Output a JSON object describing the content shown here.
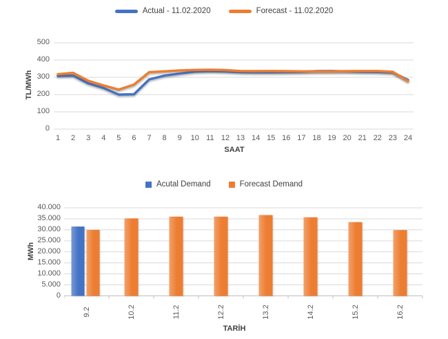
{
  "colors": {
    "actual": "#4472C4",
    "forecast": "#ED7D31",
    "gridline": "#D9D9D9",
    "axis_line": "#BFBFBF",
    "tick_text": "#595959",
    "title_text": "#404040",
    "background": "#FFFFFF"
  },
  "chart_data": [
    {
      "type": "line",
      "title": "",
      "xlabel": "SAAT",
      "ylabel": "TL/MWh",
      "legend_position": "top",
      "grid": true,
      "ylim": [
        0,
        500
      ],
      "ytick_step": 100,
      "ytick_labels": [
        "500",
        "400",
        "300",
        "200",
        "100",
        "0"
      ],
      "x": [
        1,
        2,
        3,
        4,
        5,
        6,
        7,
        8,
        9,
        10,
        11,
        12,
        13,
        14,
        15,
        16,
        17,
        18,
        19,
        20,
        21,
        22,
        23,
        24
      ],
      "series": [
        {
          "name": "Actual - 11.02.2020",
          "color": "#4472C4",
          "values": [
            308,
            310,
            265,
            238,
            200,
            202,
            288,
            310,
            322,
            333,
            336,
            334,
            330,
            329,
            329,
            330,
            332,
            336,
            337,
            335,
            332,
            331,
            328,
            285
          ]
        },
        {
          "name": "Forecast - 11.02.2020",
          "color": "#ED7D31",
          "values": [
            318,
            326,
            280,
            253,
            229,
            258,
            330,
            335,
            340,
            343,
            344,
            342,
            337,
            336,
            337,
            336,
            335,
            334,
            334,
            336,
            337,
            337,
            332,
            278
          ]
        }
      ]
    },
    {
      "type": "bar",
      "title": "",
      "xlabel": "TARİH",
      "ylabel": "MWh",
      "legend_position": "top",
      "grid": true,
      "ylim": [
        0,
        40000
      ],
      "ytick_step": 5000,
      "ytick_labels": [
        "40.000",
        "35.000",
        "30.000",
        "25.000",
        "20.000",
        "15.000",
        "10.000",
        "5.000",
        "0"
      ],
      "categories": [
        "9.2",
        "10.2",
        "11.2",
        "12.2",
        "13.2",
        "14.2",
        "15.2",
        "16.2"
      ],
      "series": [
        {
          "name": "Acutal Demand",
          "color": "#4472C4",
          "values": [
            31500,
            null,
            null,
            null,
            null,
            null,
            null,
            null
          ]
        },
        {
          "name": "Forecast Demand",
          "color": "#ED7D31",
          "values": [
            30000,
            35200,
            36000,
            36000,
            36700,
            35700,
            33500,
            29900
          ]
        }
      ]
    }
  ]
}
